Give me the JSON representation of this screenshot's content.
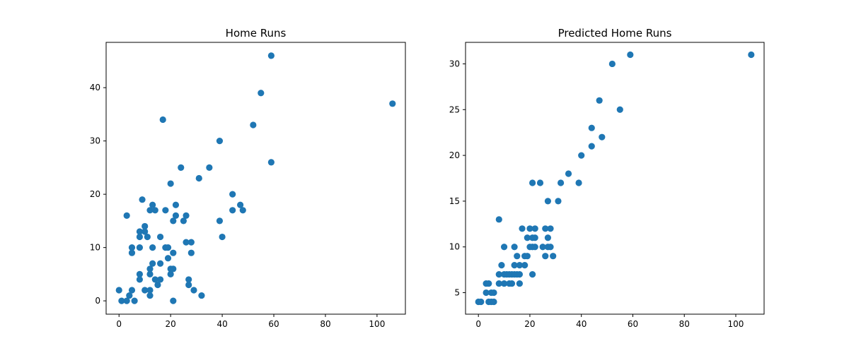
{
  "chart_data": [
    {
      "type": "scatter",
      "title": "Home Runs",
      "xlabel": "",
      "ylabel": "",
      "xlim": [
        -5,
        111
      ],
      "ylim": [
        -2.5,
        48.5
      ],
      "xticks": [
        0,
        20,
        40,
        60,
        80,
        100
      ],
      "yticks": [
        0,
        10,
        20,
        30,
        40
      ],
      "grid": false,
      "color": "#1f77b4",
      "points": [
        [
          0,
          2
        ],
        [
          1,
          0
        ],
        [
          3,
          0
        ],
        [
          3,
          16
        ],
        [
          4,
          1
        ],
        [
          5,
          2
        ],
        [
          5,
          10
        ],
        [
          5,
          9
        ],
        [
          6,
          0
        ],
        [
          8,
          13
        ],
        [
          8,
          12
        ],
        [
          8,
          10
        ],
        [
          8,
          5
        ],
        [
          8,
          4
        ],
        [
          9,
          19
        ],
        [
          10,
          14
        ],
        [
          10,
          13
        ],
        [
          10,
          2
        ],
        [
          11,
          12
        ],
        [
          12,
          17
        ],
        [
          12,
          6
        ],
        [
          12,
          5
        ],
        [
          12,
          2
        ],
        [
          12,
          1
        ],
        [
          13,
          18
        ],
        [
          13,
          10
        ],
        [
          13,
          7
        ],
        [
          14,
          17
        ],
        [
          14,
          4
        ],
        [
          15,
          3
        ],
        [
          16,
          12
        ],
        [
          16,
          7
        ],
        [
          16,
          4
        ],
        [
          17,
          34
        ],
        [
          18,
          17
        ],
        [
          18,
          10
        ],
        [
          19,
          10
        ],
        [
          19,
          8
        ],
        [
          20,
          22
        ],
        [
          20,
          6
        ],
        [
          20,
          5
        ],
        [
          21,
          15
        ],
        [
          21,
          9
        ],
        [
          21,
          6
        ],
        [
          21,
          0
        ],
        [
          22,
          18
        ],
        [
          22,
          16
        ],
        [
          24,
          25
        ],
        [
          25,
          15
        ],
        [
          26,
          16
        ],
        [
          26,
          11
        ],
        [
          27,
          4
        ],
        [
          27,
          3
        ],
        [
          28,
          11
        ],
        [
          28,
          9
        ],
        [
          29,
          2
        ],
        [
          31,
          23
        ],
        [
          32,
          1
        ],
        [
          35,
          25
        ],
        [
          39,
          30
        ],
        [
          39,
          15
        ],
        [
          40,
          12
        ],
        [
          44,
          20
        ],
        [
          44,
          17
        ],
        [
          47,
          18
        ],
        [
          48,
          17
        ],
        [
          52,
          33
        ],
        [
          55,
          39
        ],
        [
          59,
          46
        ],
        [
          59,
          26
        ],
        [
          106,
          37
        ]
      ]
    },
    {
      "type": "scatter",
      "title": "Predicted Home Runs",
      "xlabel": "",
      "ylabel": "",
      "xlim": [
        -5,
        111
      ],
      "ylim": [
        2.65,
        32.35
      ],
      "xticks": [
        0,
        20,
        40,
        60,
        80,
        100
      ],
      "yticks": [
        5,
        10,
        15,
        20,
        25,
        30
      ],
      "grid": false,
      "color": "#1f77b4",
      "points": [
        [
          0,
          4
        ],
        [
          1,
          4
        ],
        [
          3,
          5
        ],
        [
          3,
          6
        ],
        [
          4,
          6
        ],
        [
          4,
          4
        ],
        [
          5,
          4
        ],
        [
          5,
          5
        ],
        [
          6,
          5
        ],
        [
          6,
          4
        ],
        [
          8,
          13
        ],
        [
          8,
          7
        ],
        [
          8,
          6
        ],
        [
          9,
          8
        ],
        [
          10,
          10
        ],
        [
          10,
          7
        ],
        [
          10,
          6
        ],
        [
          11,
          7
        ],
        [
          12,
          7
        ],
        [
          12,
          6
        ],
        [
          13,
          7
        ],
        [
          13,
          6
        ],
        [
          14,
          10
        ],
        [
          14,
          8
        ],
        [
          14,
          7
        ],
        [
          15,
          9
        ],
        [
          15,
          7
        ],
        [
          16,
          8
        ],
        [
          16,
          7
        ],
        [
          16,
          6
        ],
        [
          17,
          12
        ],
        [
          18,
          9
        ],
        [
          18,
          8
        ],
        [
          19,
          11
        ],
        [
          19,
          9
        ],
        [
          20,
          12
        ],
        [
          20,
          10
        ],
        [
          21,
          17
        ],
        [
          21,
          11
        ],
        [
          21,
          10
        ],
        [
          21,
          7
        ],
        [
          22,
          12
        ],
        [
          22,
          11
        ],
        [
          22,
          10
        ],
        [
          24,
          17
        ],
        [
          25,
          10
        ],
        [
          26,
          12
        ],
        [
          26,
          9
        ],
        [
          27,
          15
        ],
        [
          27,
          11
        ],
        [
          27,
          10
        ],
        [
          28,
          12
        ],
        [
          28,
          10
        ],
        [
          29,
          9
        ],
        [
          31,
          15
        ],
        [
          32,
          17
        ],
        [
          35,
          18
        ],
        [
          39,
          17
        ],
        [
          40,
          20
        ],
        [
          44,
          23
        ],
        [
          44,
          21
        ],
        [
          47,
          26
        ],
        [
          48,
          22
        ],
        [
          52,
          30
        ],
        [
          55,
          25
        ],
        [
          59,
          31
        ],
        [
          106,
          31
        ]
      ]
    }
  ]
}
